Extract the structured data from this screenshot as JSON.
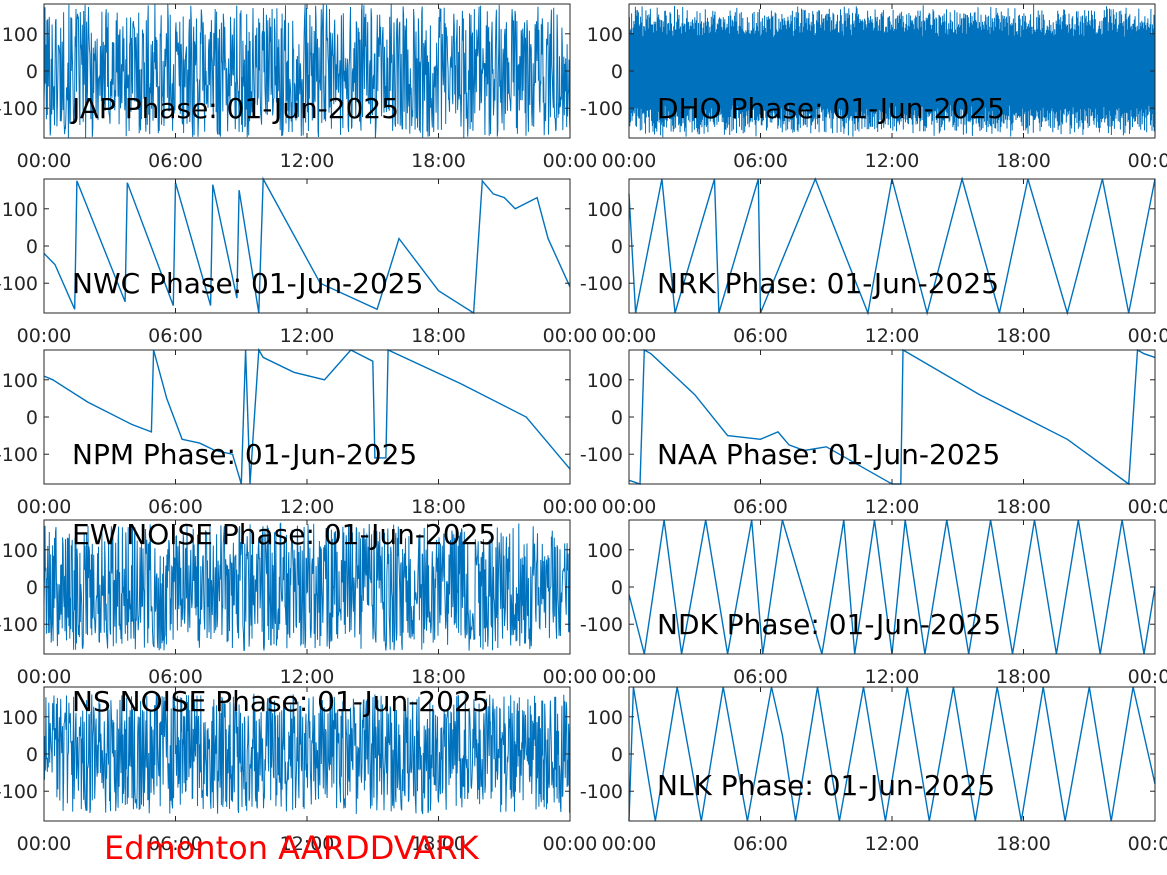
{
  "page": {
    "caption": "Edmonton AARDDVARK",
    "caption_color": "#ff0000",
    "trace_color": "#0072bd"
  },
  "chart_data": [
    {
      "type": "line",
      "title": "JAP Phase: 01-Jun-2025",
      "xlabel": "",
      "ylabel": "",
      "xlim": [
        "00:00",
        "24:00"
      ],
      "ylim": [
        -180,
        180
      ],
      "xticks": [
        "00:00",
        "06:00",
        "12:00",
        "18:00",
        "00:00"
      ],
      "yticks": [
        "-100",
        "0",
        "100"
      ],
      "series": [
        {
          "style": "noise",
          "level": 1.0,
          "x": [],
          "y": []
        }
      ]
    },
    {
      "type": "line",
      "title": "DHO Phase: 01-Jun-2025",
      "xlabel": "",
      "ylabel": "",
      "xlim": [
        "00:00",
        "24:00"
      ],
      "ylim": [
        -180,
        180
      ],
      "xticks": [
        "00:00",
        "06:00",
        "12:00",
        "18:00",
        "00:00"
      ],
      "yticks": [
        "-100",
        "0",
        "100"
      ],
      "series": [
        {
          "style": "dense-wrap",
          "level": 1.0,
          "x": [],
          "y": []
        }
      ]
    },
    {
      "type": "line",
      "title": "NWC Phase: 01-Jun-2025",
      "xlabel": "",
      "ylabel": "",
      "xlim": [
        "00:00",
        "24:00"
      ],
      "ylim": [
        -180,
        180
      ],
      "xticks": [
        "00:00",
        "06:00",
        "12:00",
        "18:00",
        "00:00"
      ],
      "yticks": [
        "-100",
        "0",
        "100"
      ],
      "series": [
        {
          "style": "wrapped",
          "x": [
            0.0,
            0.5,
            1.4,
            1.5,
            3.7,
            3.8,
            5.9,
            6.0,
            7.6,
            7.7,
            8.8,
            8.9,
            9.8,
            10.0,
            12.6,
            15.2,
            16.2,
            18.0,
            18.8,
            19.6,
            20.0,
            20.5,
            21.0,
            21.5,
            22.5,
            23.0,
            24.0
          ],
          "y": [
            -20,
            -50,
            -170,
            175,
            -150,
            170,
            -160,
            170,
            -160,
            165,
            -140,
            150,
            -180,
            180,
            -100,
            -170,
            20,
            -120,
            -150,
            -180,
            175,
            140,
            130,
            100,
            130,
            20,
            -110
          ]
        }
      ]
    },
    {
      "type": "line",
      "title": "NRK Phase: 01-Jun-2025",
      "xlabel": "",
      "ylabel": "",
      "xlim": [
        "00:00",
        "24:00"
      ],
      "ylim": [
        -180,
        180
      ],
      "xticks": [
        "00:00",
        "06:00",
        "12:00",
        "18:00",
        "00:00"
      ],
      "yticks": [
        "-100",
        "0",
        "100"
      ],
      "series": [
        {
          "style": "wrapped",
          "x": [
            0.0,
            0.3,
            1.5,
            2.1,
            3.9,
            4.1,
            5.9,
            6.0,
            8.5,
            10.9,
            12.0,
            13.6,
            15.2,
            16.9,
            18.2,
            20.0,
            21.6,
            22.8,
            24.0
          ],
          "y": [
            140,
            -180,
            180,
            -180,
            180,
            -180,
            180,
            -180,
            180,
            -180,
            180,
            -180,
            180,
            -180,
            180,
            -180,
            180,
            -180,
            180
          ]
        }
      ]
    },
    {
      "type": "line",
      "title": "NPM Phase: 01-Jun-2025",
      "xlabel": "",
      "ylabel": "",
      "xlim": [
        "00:00",
        "24:00"
      ],
      "ylim": [
        -180,
        180
      ],
      "xticks": [
        "00:00",
        "06:00",
        "12:00",
        "18:00",
        "00:00"
      ],
      "yticks": [
        "-100",
        "0",
        "100"
      ],
      "series": [
        {
          "style": "wrapped",
          "x": [
            0.0,
            0.4,
            2.0,
            4.0,
            4.9,
            5.0,
            5.6,
            6.3,
            7.1,
            7.8,
            8.6,
            9.0,
            9.2,
            9.4,
            9.8,
            10.0,
            11.4,
            12.8,
            14.0,
            15.0,
            15.1,
            15.6,
            15.7,
            19.0,
            22.0,
            24.0
          ],
          "y": [
            110,
            100,
            40,
            -20,
            -40,
            180,
            50,
            -60,
            -70,
            -90,
            -100,
            -180,
            180,
            -180,
            180,
            160,
            120,
            100,
            180,
            150,
            -110,
            -110,
            180,
            90,
            0,
            -140
          ]
        }
      ]
    },
    {
      "type": "line",
      "title": "NAA Phase: 01-Jun-2025",
      "xlabel": "",
      "ylabel": "",
      "xlim": [
        "00:00",
        "24:00"
      ],
      "ylim": [
        -180,
        180
      ],
      "xticks": [
        "00:00",
        "06:00",
        "12:00",
        "18:00",
        "00:00"
      ],
      "yticks": [
        "-100",
        "0",
        "100"
      ],
      "series": [
        {
          "style": "wrapped",
          "x": [
            0.0,
            0.5,
            0.7,
            1.0,
            3.0,
            4.5,
            6.0,
            6.8,
            7.3,
            8.0,
            9.0,
            12.0,
            12.4,
            12.5,
            16.0,
            20.0,
            22.8,
            23.2,
            23.5,
            24.0
          ],
          "y": [
            -170,
            -180,
            180,
            170,
            60,
            -50,
            -60,
            -40,
            -75,
            -90,
            -80,
            -180,
            -180,
            180,
            60,
            -60,
            -180,
            180,
            170,
            160
          ]
        }
      ]
    },
    {
      "type": "line",
      "title": "EW NOISE Phase: 01-Jun-2025",
      "xlabel": "",
      "ylabel": "",
      "xlim": [
        "00:00",
        "24:00"
      ],
      "ylim": [
        -180,
        180
      ],
      "xticks": [
        "00:00",
        "06:00",
        "12:00",
        "18:00",
        "00:00"
      ],
      "yticks": [
        "-100",
        "0",
        "100"
      ],
      "series": [
        {
          "style": "noise",
          "level": 0.95,
          "x": [],
          "y": []
        }
      ]
    },
    {
      "type": "line",
      "title": "NDK Phase: 01-Jun-2025",
      "xlabel": "",
      "ylabel": "",
      "xlim": [
        "00:00",
        "24:00"
      ],
      "ylim": [
        -180,
        180
      ],
      "xticks": [
        "00:00",
        "06:00",
        "12:00",
        "18:00",
        "00:00"
      ],
      "yticks": [
        "-100",
        "0",
        "100"
      ],
      "series": [
        {
          "style": "wrapped",
          "x": [
            0.0,
            0.7,
            1.6,
            2.4,
            3.5,
            4.5,
            5.6,
            6.1,
            7.0,
            8.8,
            9.8,
            10.3,
            11.2,
            12.0,
            12.6,
            13.5,
            14.5,
            15.5,
            16.5,
            17.5,
            18.5,
            19.5,
            20.5,
            21.5,
            22.5,
            23.5,
            24.0
          ],
          "y": [
            -20,
            -180,
            180,
            -180,
            180,
            -180,
            180,
            -180,
            180,
            -180,
            180,
            -180,
            180,
            -180,
            180,
            -180,
            180,
            -180,
            180,
            -180,
            180,
            -180,
            180,
            -180,
            180,
            -180,
            0
          ]
        }
      ]
    },
    {
      "type": "line",
      "title": "NS NOISE Phase: 01-Jun-2025",
      "xlabel": "",
      "ylabel": "",
      "xlim": [
        "00:00",
        "24:00"
      ],
      "ylim": [
        -180,
        180
      ],
      "xticks": [
        "00:00",
        "06:00",
        "12:00",
        "18:00",
        "00:00"
      ],
      "yticks": [
        "-100",
        "0",
        "100"
      ],
      "series": [
        {
          "style": "noise",
          "level": 0.9,
          "x": [],
          "y": []
        }
      ]
    },
    {
      "type": "line",
      "title": "NLK Phase: 01-Jun-2025",
      "xlabel": "",
      "ylabel": "",
      "xlim": [
        "00:00",
        "24:00"
      ],
      "ylim": [
        -180,
        180
      ],
      "xticks": [
        "00:00",
        "06:00",
        "12:00",
        "18:00",
        "00:00"
      ],
      "yticks": [
        "-100",
        "0",
        "100"
      ],
      "series": [
        {
          "style": "wrapped",
          "x": [
            0.0,
            0.2,
            1.2,
            2.2,
            3.3,
            4.3,
            5.4,
            6.5,
            7.0,
            7.6,
            8.6,
            9.6,
            10.7,
            11.7,
            12.7,
            13.7,
            14.8,
            15.8,
            16.8,
            17.9,
            18.9,
            19.9,
            21.0,
            22.0,
            23.0,
            24.0
          ],
          "y": [
            -180,
            180,
            -180,
            180,
            -180,
            180,
            -180,
            180,
            50,
            -180,
            180,
            -180,
            180,
            -180,
            180,
            -180,
            180,
            -180,
            180,
            -180,
            180,
            -180,
            180,
            -180,
            180,
            -80
          ]
        }
      ]
    }
  ]
}
